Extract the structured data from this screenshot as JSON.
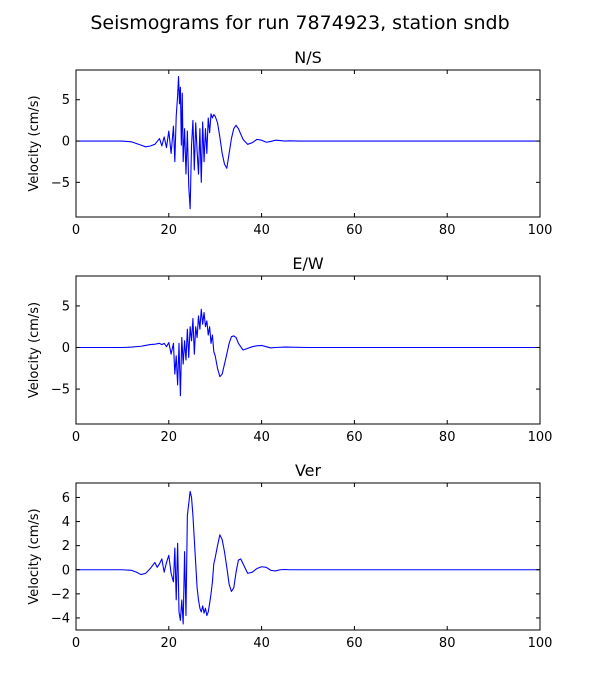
{
  "figure": {
    "title": "Seismograms for run 7874923, station sndb"
  },
  "chart_data": [
    {
      "type": "line",
      "title": "N/S",
      "xlabel": "",
      "ylabel": "Velocity (cm/s)",
      "xlim": [
        0,
        100
      ],
      "ylim": [
        -9.2,
        8.6
      ],
      "xticks": [
        0,
        20,
        40,
        60,
        80,
        100
      ],
      "yticks": [
        -5,
        0,
        5
      ],
      "color": "#0000ff",
      "grid": false,
      "series": [
        {
          "x": [
            0,
            10,
            12,
            13,
            14,
            15,
            16,
            17,
            18,
            18.5,
            19,
            19.5,
            20,
            20.5,
            21,
            21.3,
            21.6,
            21.9,
            22.1,
            22.3,
            22.5,
            22.7,
            22.9,
            23.1,
            23.4,
            23.7,
            24,
            24.3,
            24.6,
            24.9,
            25.2,
            25.5,
            25.8,
            26.1,
            26.4,
            26.7,
            27,
            27.3,
            27.6,
            27.9,
            28.2,
            28.5,
            28.8,
            29.1,
            29.4,
            29.7,
            30,
            30.5,
            31,
            31.5,
            32,
            32.5,
            33,
            33.5,
            34,
            34.5,
            35,
            36,
            37,
            38,
            39,
            40,
            41,
            42,
            43,
            44,
            45,
            46,
            48,
            50,
            60,
            80,
            100
          ],
          "y": [
            0,
            0,
            -0.1,
            -0.3,
            -0.5,
            -0.7,
            -0.6,
            -0.4,
            0.3,
            -0.6,
            0.5,
            -0.8,
            1.2,
            -1.5,
            1.8,
            -2.5,
            3,
            5.5,
            7.8,
            4.5,
            6.5,
            -0.5,
            5.8,
            -2.5,
            1.5,
            -4,
            1.2,
            -5.5,
            -8.2,
            -0.5,
            2.5,
            -3.5,
            2.2,
            -1.2,
            -4,
            1.5,
            -5,
            2.3,
            -2.5,
            1.5,
            -1.5,
            2.8,
            1,
            3.3,
            2.8,
            3.2,
            3,
            2.2,
            0.5,
            -1.5,
            -2.8,
            -3.3,
            -1.5,
            0.3,
            1.5,
            1.9,
            1.5,
            0.2,
            -0.4,
            -0.2,
            0.2,
            0.1,
            -0.15,
            -0.05,
            0.1,
            0.05,
            0,
            0.02,
            0,
            0,
            0,
            0,
            0
          ]
        }
      ]
    },
    {
      "type": "line",
      "title": "E/W",
      "xlabel": "",
      "ylabel": "Velocity (cm/s)",
      "xlim": [
        0,
        100
      ],
      "ylim": [
        -9.2,
        8.6
      ],
      "xticks": [
        0,
        20,
        40,
        60,
        80,
        100
      ],
      "yticks": [
        -5,
        0,
        5
      ],
      "color": "#0000ff",
      "grid": false,
      "series": [
        {
          "x": [
            0,
            10,
            12,
            14,
            15,
            16,
            17,
            18,
            18.5,
            19,
            19.5,
            20,
            20.5,
            21,
            21.3,
            21.6,
            21.9,
            22.2,
            22.5,
            22.8,
            23.1,
            23.4,
            23.7,
            24,
            24.3,
            24.6,
            24.9,
            25.2,
            25.5,
            25.8,
            26.1,
            26.4,
            26.7,
            27,
            27.3,
            27.6,
            27.9,
            28.2,
            28.5,
            28.8,
            29.1,
            29.4,
            29.7,
            30,
            30.5,
            31,
            31.5,
            32,
            32.5,
            33,
            33.5,
            34,
            34.5,
            35,
            35.5,
            36,
            37,
            38,
            39,
            40,
            41,
            42,
            43,
            45,
            50,
            60,
            80,
            100
          ],
          "y": [
            0,
            0,
            0.05,
            0.15,
            0.25,
            0.35,
            0.4,
            0.5,
            0.35,
            0.5,
            0.1,
            0.6,
            -0.8,
            0.5,
            -3.2,
            -1,
            -4.5,
            0.5,
            -5.8,
            1.2,
            -2,
            0.8,
            -1.5,
            2.2,
            -1.2,
            2.5,
            0.8,
            3.5,
            -0.8,
            2.5,
            1.2,
            3.8,
            2.2,
            4.6,
            2.8,
            4.2,
            2.5,
            3.2,
            1.5,
            2.5,
            0.5,
            1.5,
            -0.5,
            -1,
            -2.5,
            -3.5,
            -3.2,
            -2,
            -0.8,
            0.5,
            1.3,
            1.4,
            1.2,
            0.5,
            0.1,
            -0.3,
            -0.1,
            0.1,
            0.2,
            0.25,
            0.1,
            -0.05,
            0,
            0.05,
            0,
            0,
            0,
            0
          ]
        }
      ]
    },
    {
      "type": "line",
      "title": "Ver",
      "xlabel": "",
      "ylabel": "Velocity (cm/s)",
      "xlim": [
        0,
        100
      ],
      "ylim": [
        -5,
        7.2
      ],
      "xticks": [
        0,
        20,
        40,
        60,
        80,
        100
      ],
      "yticks": [
        -4,
        -2,
        0,
        2,
        4,
        6
      ],
      "color": "#0000ff",
      "grid": false,
      "series": [
        {
          "x": [
            0,
            10,
            12,
            13,
            14,
            15,
            16,
            17,
            17.5,
            18,
            18.5,
            19,
            19.5,
            20,
            20.5,
            21,
            21.3,
            21.6,
            21.9,
            22.2,
            22.5,
            22.8,
            23.1,
            23.4,
            23.7,
            24,
            24.3,
            24.6,
            24.9,
            25.2,
            25.5,
            25.8,
            26.1,
            26.4,
            26.7,
            27,
            27.3,
            27.6,
            27.9,
            28.2,
            28.5,
            28.8,
            29.1,
            29.4,
            29.7,
            30,
            30.5,
            31,
            31.5,
            32,
            32.5,
            33,
            33.5,
            34,
            34.5,
            35,
            35.5,
            36,
            37,
            38,
            39,
            40,
            41,
            42,
            43,
            44,
            45,
            46,
            48,
            50,
            60,
            80,
            100
          ],
          "y": [
            0,
            0,
            -0.05,
            -0.2,
            -0.4,
            -0.3,
            0.1,
            0.6,
            0.2,
            0.5,
            0.9,
            -0.2,
            0.6,
            1.2,
            -0.3,
            -1,
            1.8,
            -2.5,
            2.2,
            -3.5,
            -4.2,
            -2.5,
            -4.5,
            1.5,
            -3.8,
            4.5,
            5.5,
            6.5,
            6,
            4.5,
            2.5,
            0.5,
            -1.5,
            -2.5,
            -3.2,
            -3.5,
            -3,
            -3.6,
            -3.2,
            -3.8,
            -3.5,
            -2.8,
            -2,
            -1,
            0.5,
            1,
            2,
            2.9,
            2.5,
            1.5,
            0.2,
            -1.2,
            -1.8,
            -1.5,
            -0.2,
            0.8,
            0.9,
            0.5,
            -0.3,
            -0.2,
            0.1,
            0.25,
            0.2,
            -0.05,
            -0.1,
            0,
            0.02,
            0,
            0,
            0,
            0,
            0,
            0
          ]
        }
      ]
    }
  ]
}
